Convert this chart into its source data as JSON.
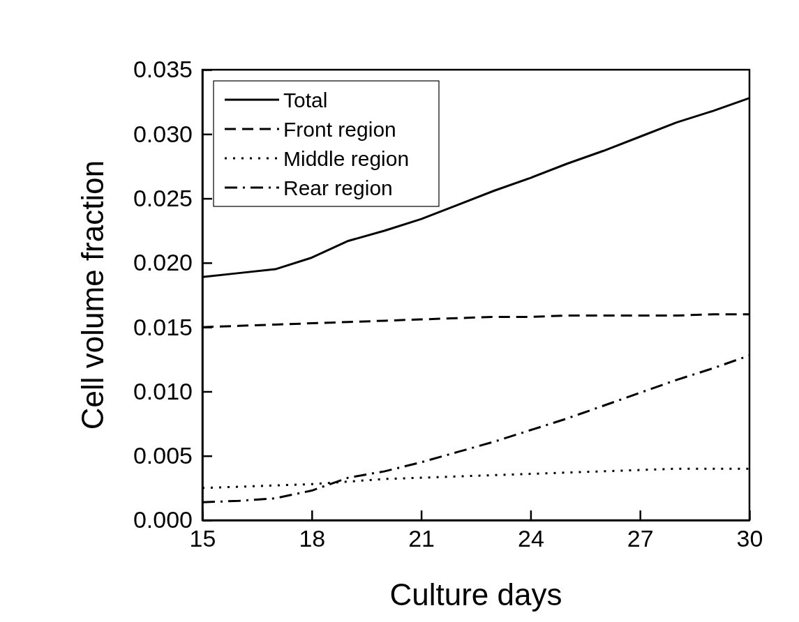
{
  "chart_data": {
    "type": "line",
    "xlabel": "Culture days",
    "ylabel": "Cell volume fraction",
    "x": [
      15,
      16,
      17,
      18,
      19,
      20,
      21,
      22,
      23,
      24,
      25,
      26,
      27,
      28,
      29,
      30
    ],
    "xlim": [
      15,
      30
    ],
    "xticks": [
      15,
      18,
      21,
      24,
      27,
      30
    ],
    "ylim": [
      0,
      0.035
    ],
    "yticks": [
      {
        "value": 0,
        "label": "0.000"
      },
      {
        "value": 0.005,
        "label": "0.005"
      },
      {
        "value": 0.01,
        "label": "0.010"
      },
      {
        "value": 0.015,
        "label": "0.015"
      },
      {
        "value": 0.02,
        "label": "0.020"
      },
      {
        "value": 0.025,
        "label": "0.025"
      },
      {
        "value": 0.03,
        "label": "0.030"
      },
      {
        "value": 0.035,
        "label": "0.035"
      }
    ],
    "grid": false,
    "legend": "top left",
    "marker": "none",
    "series": [
      {
        "name": "Total",
        "color": "#000000",
        "line_style": "solid",
        "values": [
          0.0189,
          0.0192,
          0.0195,
          0.0204,
          0.0217,
          0.0225,
          0.0234,
          0.0245,
          0.0256,
          0.0266,
          0.0277,
          0.0287,
          0.0298,
          0.0309,
          0.0318,
          0.0328
        ]
      },
      {
        "name": "Front region",
        "color": "#000000",
        "line_style": "dashed",
        "values": [
          0.015,
          0.0151,
          0.0152,
          0.0153,
          0.0154,
          0.0155,
          0.0156,
          0.0157,
          0.0158,
          0.0158,
          0.0159,
          0.0159,
          0.0159,
          0.0159,
          0.016,
          0.016
        ]
      },
      {
        "name": "Middle region",
        "color": "#000000",
        "line_style": "dotted",
        "values": [
          0.0025,
          0.0026,
          0.0027,
          0.0028,
          0.003,
          0.0032,
          0.0033,
          0.0034,
          0.0035,
          0.0036,
          0.0037,
          0.0038,
          0.0039,
          0.004,
          0.004,
          0.004
        ]
      },
      {
        "name": "Rear region",
        "color": "#000000",
        "line_style": "dashdot",
        "values": [
          0.0014,
          0.0015,
          0.0017,
          0.0023,
          0.0033,
          0.0038,
          0.0045,
          0.0053,
          0.0061,
          0.007,
          0.0079,
          0.0089,
          0.0099,
          0.0109,
          0.0118,
          0.0128
        ]
      }
    ]
  }
}
